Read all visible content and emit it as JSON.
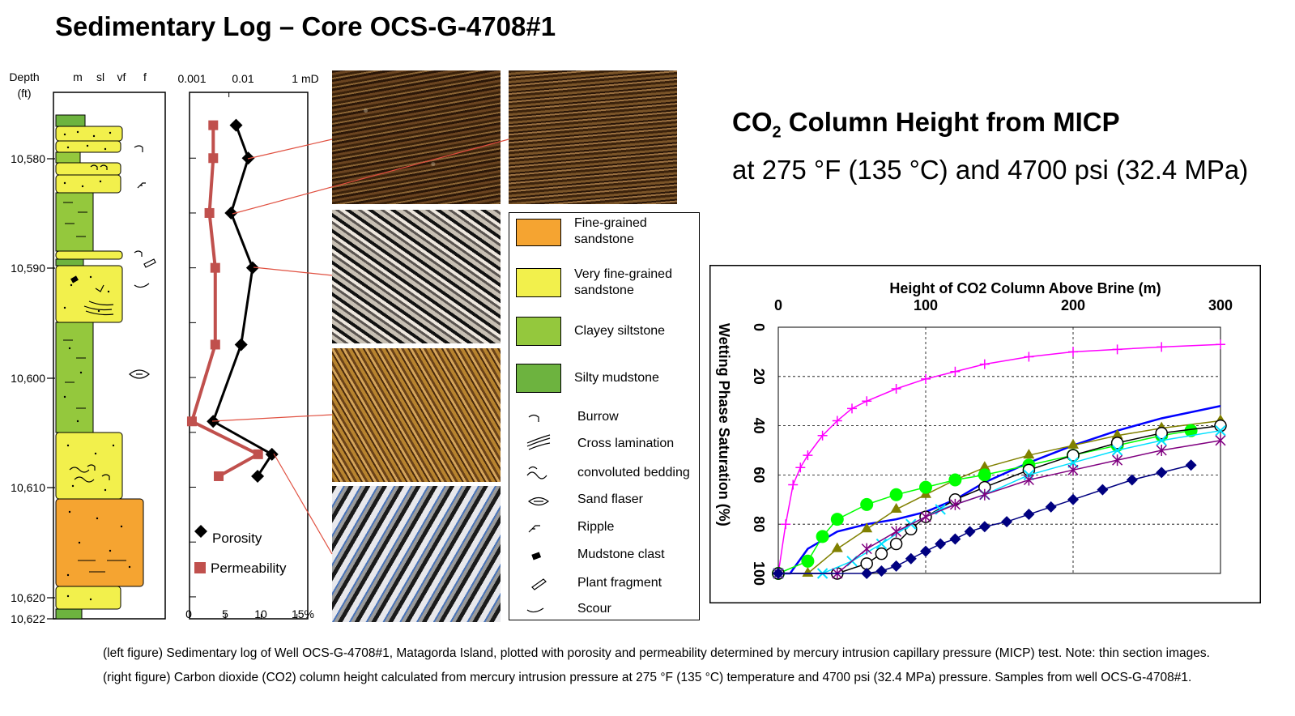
{
  "title": "Sedimentary Log – Core OCS-G-4708#1",
  "co2_panel": {
    "title_prefix": "CO",
    "title_sub": "2",
    "title_rest": " Column Height from MICP",
    "subtitle": "at 275 °F (135 °C) and 4700 psi (32.4 MPa)"
  },
  "caption": {
    "line1": "(left figure) Sedimentary log of Well OCS-G-4708#1, Matagorda Island, plotted with porosity and permeability determined by mercury intrusion capillary pressure (MICP) test. Note: thin section images.",
    "line2": "(right figure) Carbon dioxide (CO2) column height calculated from mercury intrusion pressure at 275 °F (135 °C) temperature and 4700 psi (32.4 MPa) pressure. Samples from well OCS-G-4708#1."
  },
  "log": {
    "depth_label": "Depth",
    "depth_unit": "(ft)",
    "grain_labels": [
      "m",
      "sl",
      "vf",
      "f"
    ],
    "depth_ticks": [
      "10,580",
      "10,590",
      "10,600",
      "10,610",
      "10,620",
      "10,622"
    ],
    "colors": {
      "fine_sand": "#f5a431",
      "vf_sand": "#f2f04c",
      "clayey_silt": "#94c83d",
      "silty_mud": "#6db33f"
    }
  },
  "legend": {
    "items": [
      {
        "label": "Fine-grained sandstone",
        "line1": "Fine-grained",
        "line2": "sandstone",
        "color": "#f5a431"
      },
      {
        "label": "Very fine-grained sandstone",
        "line1": "Very fine-grained",
        "line2": "sandstone",
        "color": "#f2f04c"
      },
      {
        "label": "Clayey siltstone",
        "line1": "Clayey siltstone",
        "line2": "",
        "color": "#94c83d"
      },
      {
        "label": "Silty mudstone",
        "line1": "Silty mudstone",
        "line2": "",
        "color": "#6db33f"
      }
    ],
    "symbols": [
      "Burrow",
      "Cross lamination",
      "convoluted bedding",
      "Sand flaser",
      "Ripple",
      "Mudstone clast",
      "Plant fragment",
      "Scour"
    ]
  },
  "chart_data": [
    {
      "type": "line",
      "name": "porosity-permeability-log",
      "x_top_ticks": [
        "0.001",
        "0.01",
        "1 mD"
      ],
      "x_bottom_ticks": [
        "0",
        "5",
        "10",
        "15%"
      ],
      "legend": [
        "Porosity",
        "Permeability"
      ],
      "depth_range_ft": [
        10574,
        10622
      ],
      "series": [
        {
          "name": "Porosity",
          "unit": "%",
          "color": "#000000",
          "marker": "diamond",
          "points": [
            [
              10577,
              6.5
            ],
            [
              10580,
              8.2
            ],
            [
              10585,
              5.8
            ],
            [
              10590,
              8.8
            ],
            [
              10597,
              7.2
            ],
            [
              10604,
              3.3
            ],
            [
              10607,
              11.5
            ],
            [
              10609,
              9.5
            ]
          ]
        },
        {
          "name": "Permeability",
          "unit": "mD",
          "color": "#c0504d",
          "marker": "square",
          "points": [
            [
              10577,
              0.004
            ],
            [
              10580,
              0.004
            ],
            [
              10585,
              0.0032
            ],
            [
              10590,
              0.0045
            ],
            [
              10597,
              0.0045
            ],
            [
              10604,
              0.00115
            ],
            [
              10607,
              0.055
            ],
            [
              10609,
              0.0055
            ]
          ]
        }
      ]
    },
    {
      "type": "line",
      "name": "co2-column-height",
      "xlabel": "Height of CO2 Column Above Brine (m)",
      "ylabel": "Wetting Phase Saturation (%)",
      "xlim": [
        0,
        300
      ],
      "ylim": [
        0,
        100
      ],
      "y_inverted": true,
      "x_ticks": [
        "0",
        "100",
        "200",
        "300"
      ],
      "y_ticks": [
        "0",
        "20",
        "40",
        "60",
        "80",
        "100"
      ],
      "grid": true,
      "series": [
        {
          "color": "#ff00ff",
          "marker": "plus",
          "x": [
            0,
            5,
            10,
            15,
            20,
            30,
            40,
            50,
            60,
            80,
            100,
            120,
            140,
            170,
            200,
            230,
            260,
            300
          ],
          "y": [
            100,
            80,
            64,
            57,
            52,
            44,
            38,
            33,
            30,
            25,
            21,
            18,
            15,
            12,
            10,
            9,
            8,
            7
          ]
        },
        {
          "color": "#0000ff",
          "marker": "none",
          "x": [
            0,
            8,
            20,
            40,
            60,
            80,
            100,
            120,
            140,
            170,
            200,
            230,
            260,
            300
          ],
          "y": [
            100,
            100,
            90,
            83,
            80,
            78,
            75,
            70,
            63,
            55,
            48,
            42,
            37,
            32
          ]
        },
        {
          "color": "#808000",
          "marker": "triangle",
          "x": [
            0,
            20,
            40,
            60,
            80,
            100,
            120,
            140,
            170,
            200,
            230,
            260,
            300
          ],
          "y": [
            100,
            100,
            90,
            82,
            74,
            68,
            62,
            57,
            52,
            48,
            44,
            41,
            38
          ]
        },
        {
          "color": "#00ff00",
          "marker": "circle",
          "x": [
            0,
            20,
            30,
            40,
            60,
            80,
            100,
            120,
            140,
            170,
            200,
            230,
            260,
            280
          ],
          "y": [
            100,
            95,
            85,
            78,
            72,
            68,
            65,
            62,
            60,
            56,
            52,
            48,
            44,
            42
          ]
        },
        {
          "color": "#000000",
          "marker": "open-circle",
          "x": [
            0,
            40,
            60,
            70,
            80,
            90,
            100,
            120,
            140,
            170,
            200,
            230,
            260,
            300
          ],
          "y": [
            100,
            100,
            96,
            92,
            88,
            82,
            77,
            70,
            65,
            58,
            52,
            47,
            43,
            40
          ]
        },
        {
          "color": "#00e0ff",
          "marker": "cross",
          "x": [
            0,
            30,
            50,
            70,
            90,
            110,
            140,
            170,
            200,
            230,
            260,
            300
          ],
          "y": [
            100,
            100,
            95,
            88,
            80,
            74,
            68,
            60,
            55,
            50,
            46,
            42
          ]
        },
        {
          "color": "#800080",
          "marker": "star",
          "x": [
            0,
            40,
            60,
            80,
            100,
            120,
            140,
            170,
            200,
            230,
            260,
            300
          ],
          "y": [
            100,
            100,
            90,
            83,
            77,
            72,
            68,
            62,
            58,
            54,
            50,
            46
          ]
        },
        {
          "color": "#000080",
          "marker": "diamond",
          "x": [
            0,
            60,
            70,
            80,
            90,
            100,
            110,
            120,
            130,
            140,
            155,
            170,
            185,
            200,
            220,
            240,
            260,
            280
          ],
          "y": [
            100,
            100,
            99,
            97,
            94,
            91,
            88,
            86,
            83,
            81,
            79,
            76,
            73,
            70,
            66,
            62,
            59,
            56
          ]
        }
      ]
    }
  ]
}
